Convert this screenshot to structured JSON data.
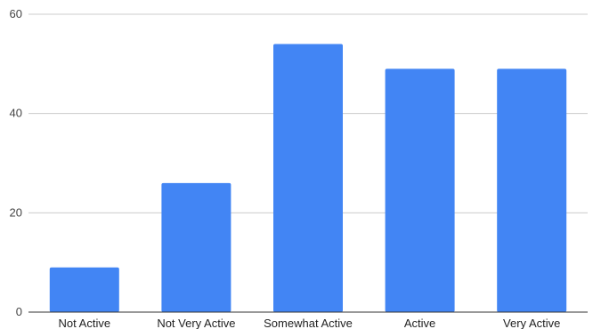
{
  "chart_data": {
    "type": "bar",
    "title": "",
    "xlabel": "",
    "ylabel": "",
    "categories": [
      "Not Active",
      "Not Very Active",
      "Somewhat Active",
      "Active",
      "Very Active"
    ],
    "values": [
      9,
      26,
      54,
      49,
      49
    ],
    "ylim": [
      0,
      60
    ],
    "yticks": [
      0,
      20,
      40,
      60
    ],
    "grid": true,
    "legend": "none",
    "bar_color": "#4285f4"
  }
}
